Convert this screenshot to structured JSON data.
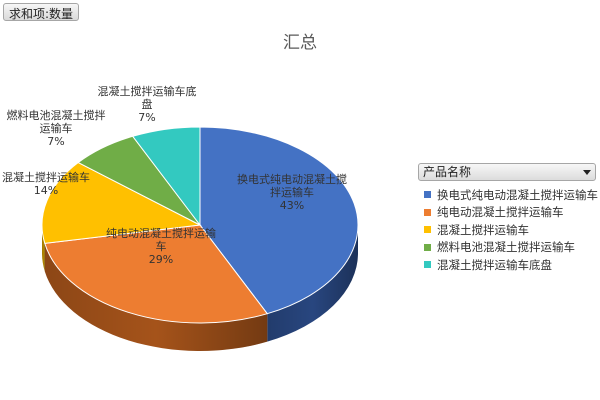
{
  "field_button": "求和项:数量",
  "legend": {
    "header": "产品名称"
  },
  "colors": {
    "slices": [
      "#4472c4",
      "#ed7d31",
      "#ffc000",
      "#70ad47",
      "#33c9c0"
    ],
    "sides": [
      "#28467f",
      "#a5531a",
      "#b88a00",
      "#4a7a2c",
      "#1d8a83"
    ]
  },
  "chart_data": {
    "type": "pie",
    "title": "汇总",
    "categories": [
      "换电式纯电动混凝土搅拌运输车",
      "纯电动混凝土搅拌运输车",
      "混凝土搅拌运输车",
      "燃料电池混凝土搅拌运输车",
      "混凝土搅拌运输车底盘"
    ],
    "values": [
      43,
      29,
      14,
      7,
      7
    ],
    "unit": "%",
    "data_labels": [
      {
        "name": "换电式纯电动混凝土搅拌运输车",
        "pct": "43%"
      },
      {
        "name": "纯电动混凝土搅拌运输车",
        "pct": "29%"
      },
      {
        "name": "混凝土搅拌运输车",
        "pct": "14%"
      },
      {
        "name": "燃料电池混凝土搅拌运输车",
        "pct": "7%"
      },
      {
        "name": "混凝土搅拌运输车底盘",
        "pct": "7%"
      }
    ],
    "legend_position": "right",
    "three_d": true
  }
}
